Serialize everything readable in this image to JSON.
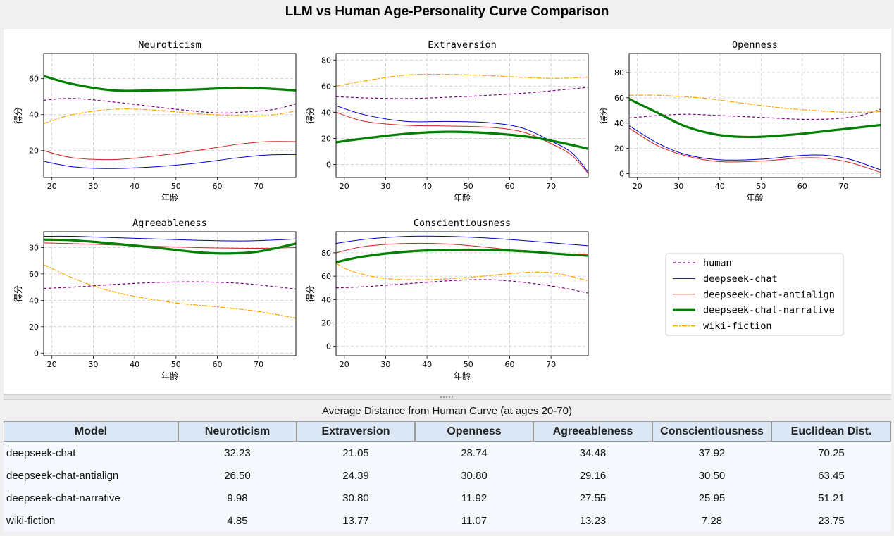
{
  "title": "LLM vs Human Age-Personality Curve Comparison",
  "chart_data": {
    "type": "line",
    "x_label": "年龄",
    "y_label": "得分",
    "x_ticks": [
      20,
      30,
      40,
      50,
      60,
      70
    ],
    "x_range": [
      18,
      79
    ],
    "series_styles": [
      {
        "name": "human",
        "color": "#800080",
        "dash": "4,3",
        "width": 1.2
      },
      {
        "name": "deepseek-chat",
        "color": "#0000cd",
        "dash": "",
        "width": 1.0
      },
      {
        "name": "deepseek-chat-antialign",
        "color": "#d62020",
        "dash": "",
        "width": 1.0
      },
      {
        "name": "deepseek-chat-narrative",
        "color": "#008000",
        "dash": "",
        "width": 3.2
      },
      {
        "name": "wiki-fiction",
        "color": "#ffa500",
        "dash": "7,2,2,2",
        "width": 1.2
      }
    ],
    "legend_position": "right",
    "grid": true,
    "panels": [
      {
        "title": "Neuroticism",
        "ylim": [
          5,
          74
        ],
        "y_ticks": [
          20,
          40,
          60
        ],
        "series": {
          "human": [
            [
              18,
              48
            ],
            [
              25,
              49
            ],
            [
              35,
              47
            ],
            [
              50,
              43
            ],
            [
              60,
              41
            ],
            [
              67,
              41.5
            ],
            [
              74,
              43
            ],
            [
              79,
              46
            ]
          ],
          "deepseek-chat": [
            [
              18,
              14
            ],
            [
              25,
              11
            ],
            [
              34,
              10
            ],
            [
              45,
              11
            ],
            [
              55,
              13
            ],
            [
              65,
              16
            ],
            [
              72,
              17.5
            ],
            [
              79,
              17.8
            ]
          ],
          "deepseek-chat-antialign": [
            [
              18,
              20
            ],
            [
              25,
              16
            ],
            [
              35,
              15
            ],
            [
              45,
              17
            ],
            [
              55,
              20
            ],
            [
              65,
              23.5
            ],
            [
              72,
              25
            ],
            [
              79,
              25
            ]
          ],
          "deepseek-chat-narrative": [
            [
              18,
              61.5
            ],
            [
              25,
              57
            ],
            [
              35,
              53.5
            ],
            [
              45,
              53.5
            ],
            [
              55,
              54
            ],
            [
              65,
              55
            ],
            [
              72,
              54.5
            ],
            [
              79,
              53.5
            ]
          ],
          "wiki-fiction": [
            [
              18,
              35
            ],
            [
              25,
              40
            ],
            [
              35,
              43
            ],
            [
              45,
              42.5
            ],
            [
              55,
              40.5
            ],
            [
              65,
              39.5
            ],
            [
              72,
              39.5
            ],
            [
              79,
              42
            ]
          ]
        }
      },
      {
        "title": "Extraversion",
        "ylim": [
          -10,
          85
        ],
        "y_ticks": [
          0,
          20,
          40,
          60,
          80
        ],
        "series": {
          "human": [
            [
              18,
              52
            ],
            [
              25,
              51
            ],
            [
              35,
              50.5
            ],
            [
              45,
              51.5
            ],
            [
              55,
              53
            ],
            [
              65,
              55
            ],
            [
              72,
              57
            ],
            [
              79,
              59
            ]
          ],
          "deepseek-chat": [
            [
              18,
              45
            ],
            [
              25,
              38
            ],
            [
              35,
              33
            ],
            [
              45,
              33
            ],
            [
              55,
              32
            ],
            [
              63,
              28
            ],
            [
              70,
              18
            ],
            [
              75,
              9
            ],
            [
              79,
              -6
            ]
          ],
          "deepseek-chat-antialign": [
            [
              18,
              40
            ],
            [
              25,
              33
            ],
            [
              35,
              30
            ],
            [
              45,
              29.5
            ],
            [
              55,
              28.5
            ],
            [
              63,
              25
            ],
            [
              70,
              16
            ],
            [
              75,
              7
            ],
            [
              79,
              -7
            ]
          ],
          "deepseek-chat-narrative": [
            [
              18,
              17
            ],
            [
              25,
              20
            ],
            [
              35,
              23.5
            ],
            [
              45,
              25
            ],
            [
              55,
              24
            ],
            [
              65,
              21
            ],
            [
              72,
              17
            ],
            [
              79,
              12
            ]
          ],
          "wiki-fiction": [
            [
              18,
              60
            ],
            [
              25,
              64
            ],
            [
              35,
              68.5
            ],
            [
              45,
              69
            ],
            [
              55,
              68
            ],
            [
              65,
              66.5
            ],
            [
              72,
              66
            ],
            [
              79,
              67
            ]
          ]
        }
      },
      {
        "title": "Openness",
        "ylim": [
          -3,
          95
        ],
        "y_ticks": [
          0,
          20,
          40,
          60,
          80
        ],
        "series": {
          "human": [
            [
              18,
              44
            ],
            [
              25,
              46
            ],
            [
              32,
              47
            ],
            [
              40,
              46
            ],
            [
              50,
              44.5
            ],
            [
              60,
              43
            ],
            [
              68,
              43.5
            ],
            [
              74,
              46
            ],
            [
              79,
              51
            ]
          ],
          "deepseek-chat": [
            [
              18,
              38
            ],
            [
              25,
              24
            ],
            [
              32,
              15
            ],
            [
              40,
              11
            ],
            [
              50,
              11.5
            ],
            [
              60,
              14.5
            ],
            [
              66,
              14.5
            ],
            [
              72,
              11
            ],
            [
              79,
              3
            ]
          ],
          "deepseek-chat-antialign": [
            [
              18,
              36
            ],
            [
              25,
              22
            ],
            [
              32,
              14
            ],
            [
              40,
              9.5
            ],
            [
              50,
              10
            ],
            [
              60,
              12.5
            ],
            [
              66,
              12
            ],
            [
              72,
              8.5
            ],
            [
              79,
              1
            ]
          ],
          "deepseek-chat-narrative": [
            [
              18,
              59
            ],
            [
              25,
              48
            ],
            [
              32,
              37
            ],
            [
              40,
              30.5
            ],
            [
              48,
              29
            ],
            [
              58,
              31
            ],
            [
              68,
              34.5
            ],
            [
              79,
              38.5
            ]
          ],
          "wiki-fiction": [
            [
              18,
              62
            ],
            [
              25,
              62
            ],
            [
              35,
              60
            ],
            [
              45,
              56
            ],
            [
              55,
              52
            ],
            [
              65,
              49.5
            ],
            [
              72,
              48.5
            ],
            [
              79,
              49
            ]
          ]
        }
      },
      {
        "title": "Agreeableness",
        "ylim": [
          -2,
          92
        ],
        "y_ticks": [
          0,
          20,
          40,
          60,
          80
        ],
        "series": {
          "human": [
            [
              18,
              49
            ],
            [
              25,
              50
            ],
            [
              35,
              52
            ],
            [
              45,
              53.5
            ],
            [
              55,
              54
            ],
            [
              65,
              53
            ],
            [
              72,
              51
            ],
            [
              79,
              48.5
            ]
          ],
          "deepseek-chat": [
            [
              18,
              88.5
            ],
            [
              25,
              88.5
            ],
            [
              35,
              87.5
            ],
            [
              45,
              86.5
            ],
            [
              55,
              85.5
            ],
            [
              65,
              85
            ],
            [
              72,
              85.5
            ],
            [
              79,
              86.5
            ]
          ],
          "deepseek-chat-antialign": [
            [
              18,
              83.5
            ],
            [
              25,
              83
            ],
            [
              35,
              82
            ],
            [
              45,
              81
            ],
            [
              55,
              80
            ],
            [
              65,
              79.5
            ],
            [
              72,
              79.5
            ],
            [
              79,
              80
            ]
          ],
          "deepseek-chat-narrative": [
            [
              18,
              86
            ],
            [
              25,
              85.5
            ],
            [
              35,
              83
            ],
            [
              45,
              80
            ],
            [
              55,
              76.5
            ],
            [
              62,
              75.5
            ],
            [
              70,
              77
            ],
            [
              79,
              83
            ]
          ],
          "wiki-fiction": [
            [
              18,
              67
            ],
            [
              25,
              57
            ],
            [
              32,
              49
            ],
            [
              40,
              43
            ],
            [
              50,
              38
            ],
            [
              60,
              35
            ],
            [
              70,
              31.5
            ],
            [
              79,
              26.5
            ]
          ]
        }
      },
      {
        "title": "Conscientiousness",
        "ylim": [
          -8,
          98
        ],
        "y_ticks": [
          0,
          20,
          40,
          60,
          80
        ],
        "series": {
          "human": [
            [
              18,
              50
            ],
            [
              25,
              51
            ],
            [
              35,
              53.5
            ],
            [
              45,
              56
            ],
            [
              52,
              57
            ],
            [
              58,
              56.5
            ],
            [
              65,
              54
            ],
            [
              72,
              50.5
            ],
            [
              79,
              45.5
            ]
          ],
          "deepseek-chat": [
            [
              18,
              88
            ],
            [
              25,
              91.5
            ],
            [
              35,
              94
            ],
            [
              45,
              94
            ],
            [
              55,
              92.5
            ],
            [
              65,
              90
            ],
            [
              72,
              88
            ],
            [
              79,
              86
            ]
          ],
          "deepseek-chat-antialign": [
            [
              18,
              80
            ],
            [
              25,
              85.5
            ],
            [
              35,
              88
            ],
            [
              45,
              87.5
            ],
            [
              55,
              84.5
            ],
            [
              65,
              80.5
            ],
            [
              72,
              79
            ],
            [
              79,
              79
            ]
          ],
          "deepseek-chat-narrative": [
            [
              18,
              72
            ],
            [
              25,
              77
            ],
            [
              35,
              81
            ],
            [
              45,
              82.5
            ],
            [
              55,
              82.5
            ],
            [
              65,
              81
            ],
            [
              72,
              79
            ],
            [
              79,
              77.5
            ]
          ],
          "wiki-fiction": [
            [
              18,
              71
            ],
            [
              22,
              64
            ],
            [
              30,
              58
            ],
            [
              40,
              57
            ],
            [
              50,
              59
            ],
            [
              58,
              61.5
            ],
            [
              66,
              63.5
            ],
            [
              72,
              62
            ],
            [
              79,
              56
            ]
          ]
        }
      }
    ]
  },
  "table": {
    "title": "Average Distance from Human Curve (at ages 20-70)",
    "headers": [
      "Model",
      "Neuroticism",
      "Extraversion",
      "Openness",
      "Agreeableness",
      "Conscientiousness",
      "Euclidean Dist."
    ],
    "rows": [
      [
        "deepseek-chat",
        "32.23",
        "21.05",
        "28.74",
        "34.48",
        "37.92",
        "70.25"
      ],
      [
        "deepseek-chat-antialign",
        "26.50",
        "24.39",
        "30.80",
        "29.16",
        "30.50",
        "63.45"
      ],
      [
        "deepseek-chat-narrative",
        "9.98",
        "30.80",
        "11.92",
        "27.55",
        "25.95",
        "51.21"
      ],
      [
        "wiki-fiction",
        "4.85",
        "13.77",
        "11.07",
        "13.23",
        "7.28",
        "23.75"
      ]
    ]
  }
}
